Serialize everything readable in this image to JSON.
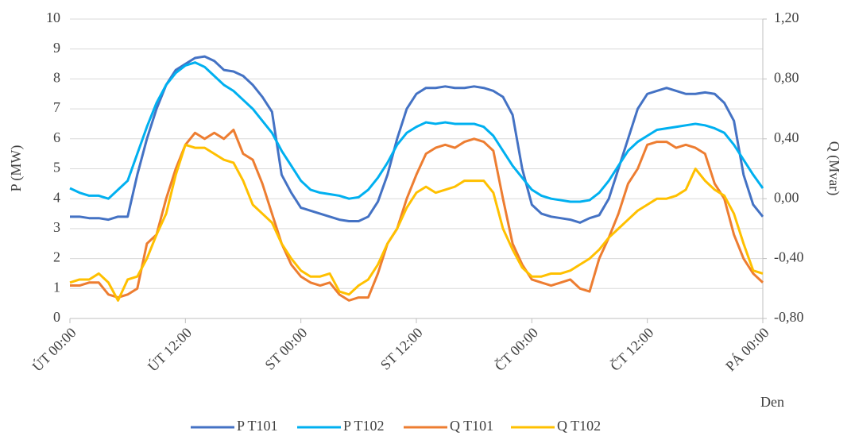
{
  "chart_data": {
    "type": "line",
    "ylabel": "P (MW)",
    "y2label": "Q (Mvar)",
    "xlabel": "Den",
    "categories": [
      "ÚT 00:00",
      null,
      null,
      null,
      null,
      null,
      null,
      null,
      null,
      null,
      null,
      null,
      "ÚT 12:00",
      null,
      null,
      null,
      null,
      null,
      null,
      null,
      null,
      null,
      null,
      null,
      "ST 00:00",
      null,
      null,
      null,
      null,
      null,
      null,
      null,
      null,
      null,
      null,
      null,
      "ST 12:00",
      null,
      null,
      null,
      null,
      null,
      null,
      null,
      null,
      null,
      null,
      null,
      "ČT 00:00",
      null,
      null,
      null,
      null,
      null,
      null,
      null,
      null,
      null,
      null,
      null,
      "ČT 12:00",
      null,
      null,
      null,
      null,
      null,
      null,
      null,
      null,
      null,
      null,
      null,
      "PÁ 00:00"
    ],
    "ylim": [
      0,
      10
    ],
    "yticks": [
      0,
      1,
      2,
      3,
      4,
      5,
      6,
      7,
      8,
      9,
      10
    ],
    "y2lim": [
      -0.8,
      1.2
    ],
    "y2ticks": [
      {
        "value": -0.8,
        "label": "-0,80"
      },
      {
        "value": -0.4,
        "label": "-0,40"
      },
      {
        "value": 0,
        "label": "0,00"
      },
      {
        "value": 0.4,
        "label": "0,40"
      },
      {
        "value": 0.8,
        "label": "0,80"
      },
      {
        "value": 1.2,
        "label": "1,20"
      }
    ],
    "grid": true,
    "legend": "bottom",
    "series": [
      {
        "name": "P T101",
        "color": "#4472c4",
        "values": [
          3.4,
          3.4,
          3.35,
          3.35,
          3.3,
          3.4,
          3.4,
          4.8,
          6.0,
          7.0,
          7.8,
          8.3,
          8.5,
          8.7,
          8.75,
          8.6,
          8.3,
          8.25,
          8.1,
          7.8,
          7.4,
          6.9,
          4.8,
          4.2,
          3.7,
          3.6,
          3.5,
          3.4,
          3.3,
          3.25,
          3.25,
          3.4,
          3.9,
          4.8,
          6.0,
          7.0,
          7.5,
          7.7,
          7.7,
          7.75,
          7.7,
          7.7,
          7.75,
          7.7,
          7.6,
          7.4,
          6.8,
          5.0,
          3.8,
          3.5,
          3.4,
          3.35,
          3.3,
          3.2,
          3.35,
          3.45,
          4.0,
          5.0,
          6.0,
          7.0,
          7.5,
          7.6,
          7.7,
          7.6,
          7.5,
          7.5,
          7.55,
          7.5,
          7.2,
          6.6,
          4.8,
          3.8,
          3.4
        ]
      },
      {
        "name": "P T102",
        "color": "#00b0f0",
        "values": [
          4.35,
          4.2,
          4.1,
          4.1,
          4.0,
          4.3,
          4.6,
          5.5,
          6.4,
          7.2,
          7.8,
          8.2,
          8.45,
          8.55,
          8.4,
          8.1,
          7.8,
          7.6,
          7.3,
          7.0,
          6.6,
          6.2,
          5.6,
          5.1,
          4.6,
          4.3,
          4.2,
          4.15,
          4.1,
          4.0,
          4.05,
          4.3,
          4.7,
          5.2,
          5.8,
          6.2,
          6.4,
          6.55,
          6.5,
          6.55,
          6.5,
          6.5,
          6.5,
          6.4,
          6.1,
          5.6,
          5.1,
          4.7,
          4.3,
          4.1,
          4.0,
          3.95,
          3.9,
          3.9,
          3.95,
          4.2,
          4.6,
          5.1,
          5.6,
          5.9,
          6.1,
          6.3,
          6.35,
          6.4,
          6.45,
          6.5,
          6.45,
          6.35,
          6.2,
          5.8,
          5.3,
          4.8,
          4.35
        ]
      },
      {
        "name": "Q T101",
        "color": "#ed7d31",
        "axis": "y2",
        "values": [
          -0.58,
          -0.58,
          -0.56,
          -0.56,
          -0.64,
          -0.66,
          -0.64,
          -0.6,
          -0.3,
          -0.24,
          0,
          0.2,
          0.36,
          0.44,
          0.4,
          0.44,
          0.4,
          0.46,
          0.3,
          0.26,
          0.1,
          -0.1,
          -0.3,
          -0.44,
          -0.52,
          -0.56,
          -0.58,
          -0.56,
          -0.64,
          -0.68,
          -0.66,
          -0.66,
          -0.5,
          -0.3,
          -0.2,
          0,
          0.16,
          0.3,
          0.34,
          0.36,
          0.34,
          0.38,
          0.4,
          0.38,
          0.32,
          0,
          -0.3,
          -0.44,
          -0.54,
          -0.56,
          -0.58,
          -0.56,
          -0.54,
          -0.6,
          -0.62,
          -0.4,
          -0.26,
          -0.1,
          0.1,
          0.2,
          0.36,
          0.38,
          0.38,
          0.34,
          0.36,
          0.34,
          0.3,
          0.1,
          0,
          -0.24,
          -0.4,
          -0.5,
          -0.56
        ]
      },
      {
        "name": "Q T102",
        "color": "#ffc000",
        "axis": "y2",
        "values": [
          -0.56,
          -0.54,
          -0.54,
          -0.5,
          -0.56,
          -0.68,
          -0.54,
          -0.52,
          -0.4,
          -0.24,
          -0.1,
          0.16,
          0.36,
          0.34,
          0.34,
          0.3,
          0.26,
          0.24,
          0.12,
          -0.04,
          -0.1,
          -0.16,
          -0.3,
          -0.4,
          -0.48,
          -0.52,
          -0.52,
          -0.5,
          -0.62,
          -0.64,
          -0.58,
          -0.54,
          -0.44,
          -0.3,
          -0.2,
          -0.06,
          0.04,
          0.08,
          0.04,
          0.06,
          0.08,
          0.12,
          0.12,
          0.12,
          0.04,
          -0.2,
          -0.34,
          -0.46,
          -0.52,
          -0.52,
          -0.5,
          -0.5,
          -0.48,
          -0.44,
          -0.4,
          -0.34,
          -0.26,
          -0.2,
          -0.14,
          -0.08,
          -0.04,
          0,
          0,
          0.02,
          0.06,
          0.2,
          0.12,
          0.06,
          0.02,
          -0.1,
          -0.3,
          -0.48,
          -0.5
        ]
      }
    ]
  }
}
